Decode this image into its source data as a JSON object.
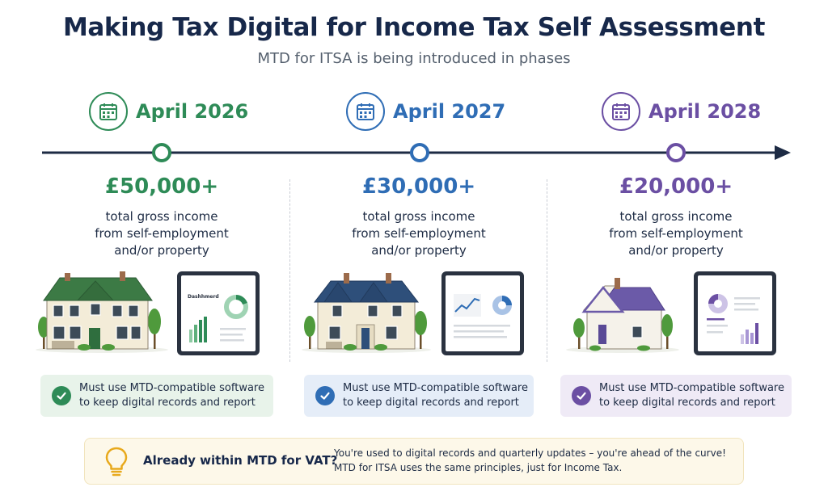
{
  "header": {
    "title": "Making Tax Digital for Income Tax Self Assessment",
    "subtitle": "MTD for ITSA is being introduced in phases"
  },
  "phases": [
    {
      "date": "April 2026",
      "threshold": "£50,000+",
      "desc_line1": "total gross income",
      "desc_line2": "from self-employment",
      "desc_line3": "and/or property",
      "dashboard_label": "Dashhmerd",
      "note_line1": "Must use MTD-compatible software",
      "note_line2": "to keep digital records and report",
      "color": "#2e8b57",
      "note_bg": "#e8f3ea",
      "icon": "calendar-icon"
    },
    {
      "date": "April 2027",
      "threshold": "£30,000+",
      "desc_line1": "total gross income",
      "desc_line2": "from self-employment",
      "desc_line3": "and/or property",
      "note_line1": "Must use MTD-compatible software",
      "note_line2": "to keep digital records and report",
      "color": "#2f6db5",
      "note_bg": "#e5edf8",
      "icon": "calendar-icon"
    },
    {
      "date": "April 2028",
      "threshold": "£20,000+",
      "desc_line1": "total gross income",
      "desc_line2": "from self-employment",
      "desc_line3": "and/or property",
      "note_line1": "Must use MTD-compatible software",
      "note_line2": "to keep digital records and report",
      "color": "#6b4fa3",
      "note_bg": "#efeaf6",
      "icon": "calendar-icon"
    }
  ],
  "banner": {
    "heading": "Already within MTD for VAT?",
    "line1": "You're used to digital records and quarterly updates – you're ahead of the curve!",
    "line2": "MTD for ITSA uses the same principles, just for Income Tax.",
    "icon": "lightbulb-icon",
    "accent": "#e8a91c"
  },
  "timeline": {
    "color": "#1d2b44"
  }
}
